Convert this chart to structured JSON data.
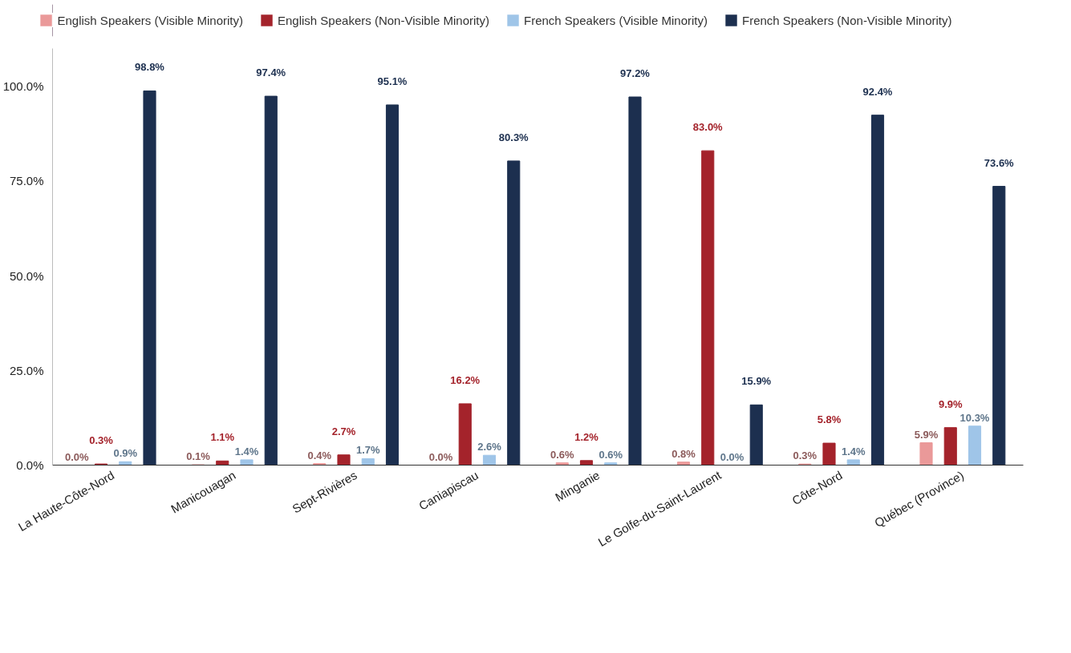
{
  "chart_data": {
    "type": "bar",
    "categories": [
      "La Haute-Côte-Nord",
      "Manicouagan",
      "Sept-Rivières",
      "Caniapiscau",
      "Minganie",
      "Le Golfe-du-Saint-Laurent",
      "Côte-Nord",
      "Québec (Province)"
    ],
    "series": [
      {
        "name": "English Speakers (Visible Minority)",
        "color": "#ea9999",
        "values": [
          0.0,
          0.1,
          0.4,
          0.0,
          0.6,
          0.8,
          0.3,
          5.9
        ],
        "value_labels": [
          "0.0%",
          "0.1%",
          "0.4%",
          "0.0%",
          "0.6%",
          "0.8%",
          "0.3%",
          "5.9%"
        ]
      },
      {
        "name": "English Speakers (Non-Visible Minority)",
        "color": "#a4232b",
        "values": [
          0.3,
          1.1,
          2.7,
          16.2,
          1.2,
          83.0,
          5.8,
          9.9
        ],
        "value_labels": [
          "0.3%",
          "1.1%",
          "2.7%",
          "16.2%",
          "1.2%",
          "83.0%",
          "5.8%",
          "9.9%"
        ]
      },
      {
        "name": "French Speakers (Visible Minority)",
        "color": "#9fc5e8",
        "values": [
          0.9,
          1.4,
          1.7,
          2.6,
          0.6,
          0.0,
          1.4,
          10.3
        ],
        "value_labels": [
          "0.9%",
          "1.4%",
          "1.7%",
          "2.6%",
          "0.6%",
          "0.0%",
          "1.4%",
          "10.3%"
        ]
      },
      {
        "name": "French Speakers (Non-Visible Minority)",
        "color": "#1c2f4f",
        "values": [
          98.8,
          97.4,
          95.1,
          80.3,
          97.2,
          15.9,
          92.4,
          73.6
        ],
        "value_labels": [
          "98.8%",
          "97.4%",
          "95.1%",
          "80.3%",
          "97.2%",
          "15.9%",
          "92.4%",
          "73.6%"
        ]
      }
    ],
    "ylim": [
      0,
      110
    ],
    "yticks": [
      {
        "value": 0,
        "label": "0.0%"
      },
      {
        "value": 25,
        "label": "25.0%"
      },
      {
        "value": 50,
        "label": "50.0%"
      },
      {
        "value": 75,
        "label": "75.0%"
      },
      {
        "value": 100,
        "label": "100.0%"
      }
    ],
    "grid": false,
    "legend": "top"
  }
}
